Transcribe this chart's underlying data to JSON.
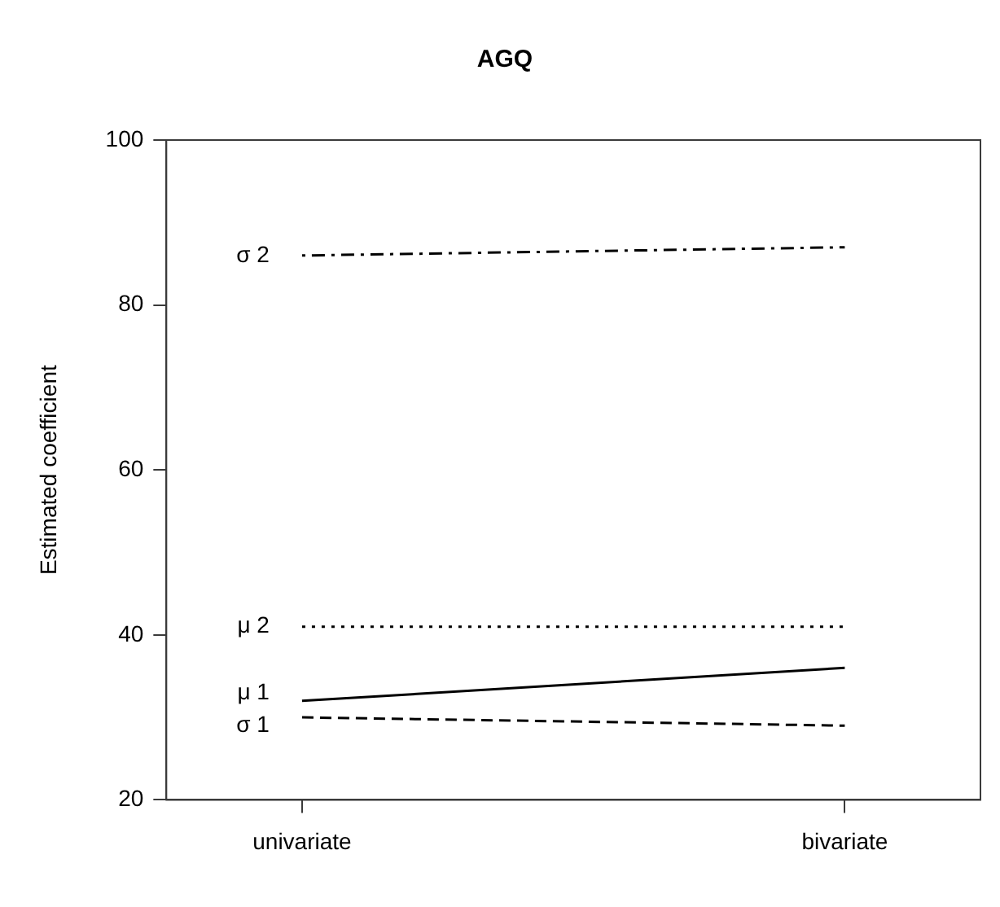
{
  "chart_data": {
    "type": "line",
    "title": "AGQ",
    "ylabel": "Estimated coefficient",
    "categories": [
      "univariate",
      "bivariate"
    ],
    "ylim": [
      20,
      100
    ],
    "yticks": [
      20,
      40,
      60,
      80,
      100
    ],
    "grid": false,
    "legend": false,
    "marker": "none",
    "series": [
      {
        "name": "σ 2",
        "color": "#000000",
        "line_style": "dashdot",
        "values": [
          86,
          87
        ]
      },
      {
        "name": "μ 2",
        "color": "#000000",
        "line_style": "dotted",
        "values": [
          41,
          41
        ]
      },
      {
        "name": "μ 1",
        "color": "#000000",
        "line_style": "solid",
        "values": [
          32,
          36
        ]
      },
      {
        "name": "σ 1",
        "color": "#000000",
        "line_style": "dashed",
        "values": [
          30,
          29
        ]
      }
    ]
  }
}
